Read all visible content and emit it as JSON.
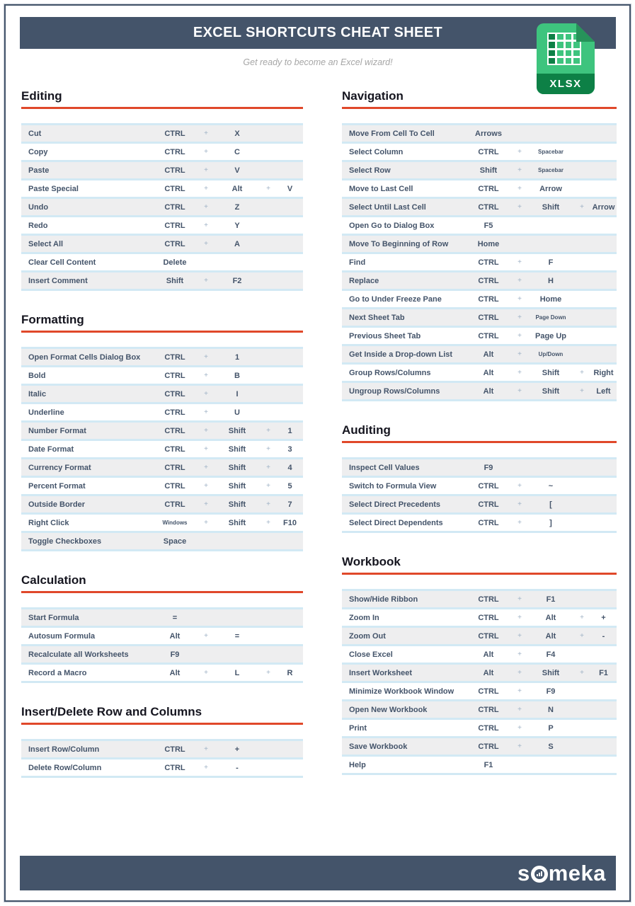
{
  "header": {
    "title": "EXCEL SHORTCUTS CHEAT SHEET",
    "subtitle": "Get ready to become an Excel wizard!"
  },
  "badge": {
    "label": "XLSX",
    "icon": "spreadsheet-grid-icon"
  },
  "footer": {
    "brand_before": "s",
    "brand_after": "meka",
    "brand_full": "someka"
  },
  "colors": {
    "bar_slate": "#44546A",
    "accent_red": "#E0482A",
    "row_stripe": "#EEEEEF",
    "row_separator": "#D2E9F4",
    "text": "#44546A",
    "heading_text": "#15151F",
    "subtitle_gray": "#A6A6A6",
    "badge_green": "#3EC47E",
    "badge_fold_green": "#27935A",
    "badge_band_green": "#0D8046"
  },
  "columns": [
    {
      "sections": [
        {
          "title": "Editing",
          "rows": [
            {
              "action": "Cut",
              "keys": [
                {
                  "k": "CTRL"
                },
                {
                  "k": "X"
                }
              ]
            },
            {
              "action": "Copy",
              "keys": [
                {
                  "k": "CTRL"
                },
                {
                  "k": "C"
                }
              ]
            },
            {
              "action": "Paste",
              "keys": [
                {
                  "k": "CTRL"
                },
                {
                  "k": "V"
                }
              ]
            },
            {
              "action": "Paste Special",
              "keys": [
                {
                  "k": "CTRL"
                },
                {
                  "k": "Alt"
                },
                {
                  "k": "V"
                }
              ]
            },
            {
              "action": "Undo",
              "keys": [
                {
                  "k": "CTRL"
                },
                {
                  "k": "Z"
                }
              ]
            },
            {
              "action": "Redo",
              "keys": [
                {
                  "k": "CTRL"
                },
                {
                  "k": "Y"
                }
              ]
            },
            {
              "action": "Select All",
              "keys": [
                {
                  "k": "CTRL"
                },
                {
                  "k": "A"
                }
              ]
            },
            {
              "action": "Clear Cell Content",
              "keys": [
                {
                  "k": "Delete"
                }
              ]
            },
            {
              "action": "Insert Comment",
              "keys": [
                {
                  "k": "Shift"
                },
                {
                  "k": "F2"
                }
              ]
            }
          ]
        },
        {
          "title": "Formatting",
          "rows": [
            {
              "action": "Open Format Cells Dialog Box",
              "keys": [
                {
                  "k": "CTRL"
                },
                {
                  "k": "1"
                }
              ]
            },
            {
              "action": "Bold",
              "keys": [
                {
                  "k": "CTRL"
                },
                {
                  "k": "B"
                }
              ]
            },
            {
              "action": "Italic",
              "keys": [
                {
                  "k": "CTRL"
                },
                {
                  "k": "I"
                }
              ]
            },
            {
              "action": "Underline",
              "keys": [
                {
                  "k": "CTRL"
                },
                {
                  "k": "U"
                }
              ]
            },
            {
              "action": "Number Format",
              "keys": [
                {
                  "k": "CTRL"
                },
                {
                  "k": "Shift"
                },
                {
                  "k": "1"
                }
              ]
            },
            {
              "action": "Date Format",
              "keys": [
                {
                  "k": "CTRL"
                },
                {
                  "k": "Shift"
                },
                {
                  "k": "3"
                }
              ]
            },
            {
              "action": "Currency Format",
              "keys": [
                {
                  "k": "CTRL"
                },
                {
                  "k": "Shift"
                },
                {
                  "k": "4"
                }
              ]
            },
            {
              "action": "Percent Format",
              "keys": [
                {
                  "k": "CTRL"
                },
                {
                  "k": "Shift"
                },
                {
                  "k": "5"
                }
              ]
            },
            {
              "action": "Outside Border",
              "keys": [
                {
                  "k": "CTRL"
                },
                {
                  "k": "Shift"
                },
                {
                  "k": "7"
                }
              ]
            },
            {
              "action": "Right Click",
              "keys": [
                {
                  "k": "Windows",
                  "small": true
                },
                {
                  "k": "Shift"
                },
                {
                  "k": "F10"
                }
              ]
            },
            {
              "action": "Toggle Checkboxes",
              "keys": [
                {
                  "k": "Space"
                }
              ]
            }
          ]
        },
        {
          "title": "Calculation",
          "rows": [
            {
              "action": "Start Formula",
              "keys": [
                {
                  "k": "="
                }
              ]
            },
            {
              "action": "Autosum Formula",
              "keys": [
                {
                  "k": "Alt"
                },
                {
                  "k": "="
                }
              ]
            },
            {
              "action": "Recalculate all Worksheets",
              "keys": [
                {
                  "k": "F9"
                }
              ]
            },
            {
              "action": "Record a Macro",
              "keys": [
                {
                  "k": "Alt"
                },
                {
                  "k": "L"
                },
                {
                  "k": "R"
                }
              ]
            }
          ]
        },
        {
          "title": "Insert/Delete Row and Columns",
          "rows": [
            {
              "action": "Insert Row/Column",
              "keys": [
                {
                  "k": "CTRL"
                },
                {
                  "k": "+"
                }
              ]
            },
            {
              "action": "Delete Row/Column",
              "keys": [
                {
                  "k": "CTRL"
                },
                {
                  "k": "-"
                }
              ]
            }
          ]
        }
      ]
    },
    {
      "sections": [
        {
          "title": "Navigation",
          "rows": [
            {
              "action": "Move From Cell To Cell",
              "keys": [
                {
                  "k": "Arrows"
                }
              ]
            },
            {
              "action": "Select Column",
              "keys": [
                {
                  "k": "CTRL"
                },
                {
                  "k": "Spacebar",
                  "small": true
                }
              ]
            },
            {
              "action": "Select Row",
              "keys": [
                {
                  "k": "Shift"
                },
                {
                  "k": "Spacebar",
                  "small": true
                }
              ]
            },
            {
              "action": "Move to Last Cell",
              "keys": [
                {
                  "k": "CTRL"
                },
                {
                  "k": "Arrow"
                }
              ]
            },
            {
              "action": "Select Until Last Cell",
              "keys": [
                {
                  "k": "CTRL"
                },
                {
                  "k": "Shift"
                },
                {
                  "k": "Arrow"
                }
              ]
            },
            {
              "action": "Open Go to Dialog Box",
              "keys": [
                {
                  "k": "F5"
                }
              ]
            },
            {
              "action": "Move To Beginning of Row",
              "keys": [
                {
                  "k": "Home"
                }
              ]
            },
            {
              "action": "Find",
              "keys": [
                {
                  "k": "CTRL"
                },
                {
                  "k": "F"
                }
              ]
            },
            {
              "action": "Replace",
              "keys": [
                {
                  "k": "CTRL"
                },
                {
                  "k": "H"
                }
              ]
            },
            {
              "action": "Go to Under Freeze Pane",
              "keys": [
                {
                  "k": "CTRL"
                },
                {
                  "k": "Home"
                }
              ]
            },
            {
              "action": "Next Sheet Tab",
              "keys": [
                {
                  "k": "CTRL"
                },
                {
                  "k": "Page Down",
                  "small": true
                }
              ]
            },
            {
              "action": "Previous Sheet Tab",
              "keys": [
                {
                  "k": "CTRL"
                },
                {
                  "k": "Page Up"
                }
              ]
            },
            {
              "action": "Get Inside a Drop-down List",
              "keys": [
                {
                  "k": "Alt"
                },
                {
                  "k": "Up/Down",
                  "small": true
                }
              ]
            },
            {
              "action": "Group Rows/Columns",
              "keys": [
                {
                  "k": "Alt"
                },
                {
                  "k": "Shift"
                },
                {
                  "k": "Right"
                }
              ]
            },
            {
              "action": "Ungroup Rows/Columns",
              "keys": [
                {
                  "k": "Alt"
                },
                {
                  "k": "Shift"
                },
                {
                  "k": "Left"
                }
              ]
            }
          ]
        },
        {
          "title": "Auditing",
          "rows": [
            {
              "action": "Inspect Cell Values",
              "keys": [
                {
                  "k": "F9"
                }
              ]
            },
            {
              "action": "Switch to Formula View",
              "keys": [
                {
                  "k": "CTRL"
                },
                {
                  "k": "~"
                }
              ]
            },
            {
              "action": "Select Direct Precedents",
              "keys": [
                {
                  "k": "CTRL"
                },
                {
                  "k": "["
                }
              ]
            },
            {
              "action": "Select Direct Dependents",
              "keys": [
                {
                  "k": "CTRL"
                },
                {
                  "k": "]"
                }
              ]
            }
          ]
        },
        {
          "title": "Workbook",
          "rows": [
            {
              "action": "Show/Hide Ribbon",
              "keys": [
                {
                  "k": "CTRL"
                },
                {
                  "k": "F1"
                }
              ]
            },
            {
              "action": "Zoom In",
              "keys": [
                {
                  "k": "CTRL"
                },
                {
                  "k": "Alt"
                },
                {
                  "k": "+"
                }
              ]
            },
            {
              "action": "Zoom Out",
              "keys": [
                {
                  "k": "CTRL"
                },
                {
                  "k": "Alt"
                },
                {
                  "k": "-"
                }
              ]
            },
            {
              "action": "Close Excel",
              "keys": [
                {
                  "k": "Alt"
                },
                {
                  "k": "F4"
                }
              ]
            },
            {
              "action": "Insert Worksheet",
              "keys": [
                {
                  "k": "Alt"
                },
                {
                  "k": "Shift"
                },
                {
                  "k": "F1"
                }
              ]
            },
            {
              "action": "Minimize Workbook Window",
              "keys": [
                {
                  "k": "CTRL"
                },
                {
                  "k": "F9"
                }
              ]
            },
            {
              "action": "Open New Workbook",
              "keys": [
                {
                  "k": "CTRL"
                },
                {
                  "k": "N"
                }
              ]
            },
            {
              "action": "Print",
              "keys": [
                {
                  "k": "CTRL"
                },
                {
                  "k": "P"
                }
              ]
            },
            {
              "action": "Save Workbook",
              "keys": [
                {
                  "k": "CTRL"
                },
                {
                  "k": "S"
                }
              ]
            },
            {
              "action": "Help",
              "keys": [
                {
                  "k": "F1"
                }
              ]
            }
          ]
        }
      ]
    }
  ]
}
